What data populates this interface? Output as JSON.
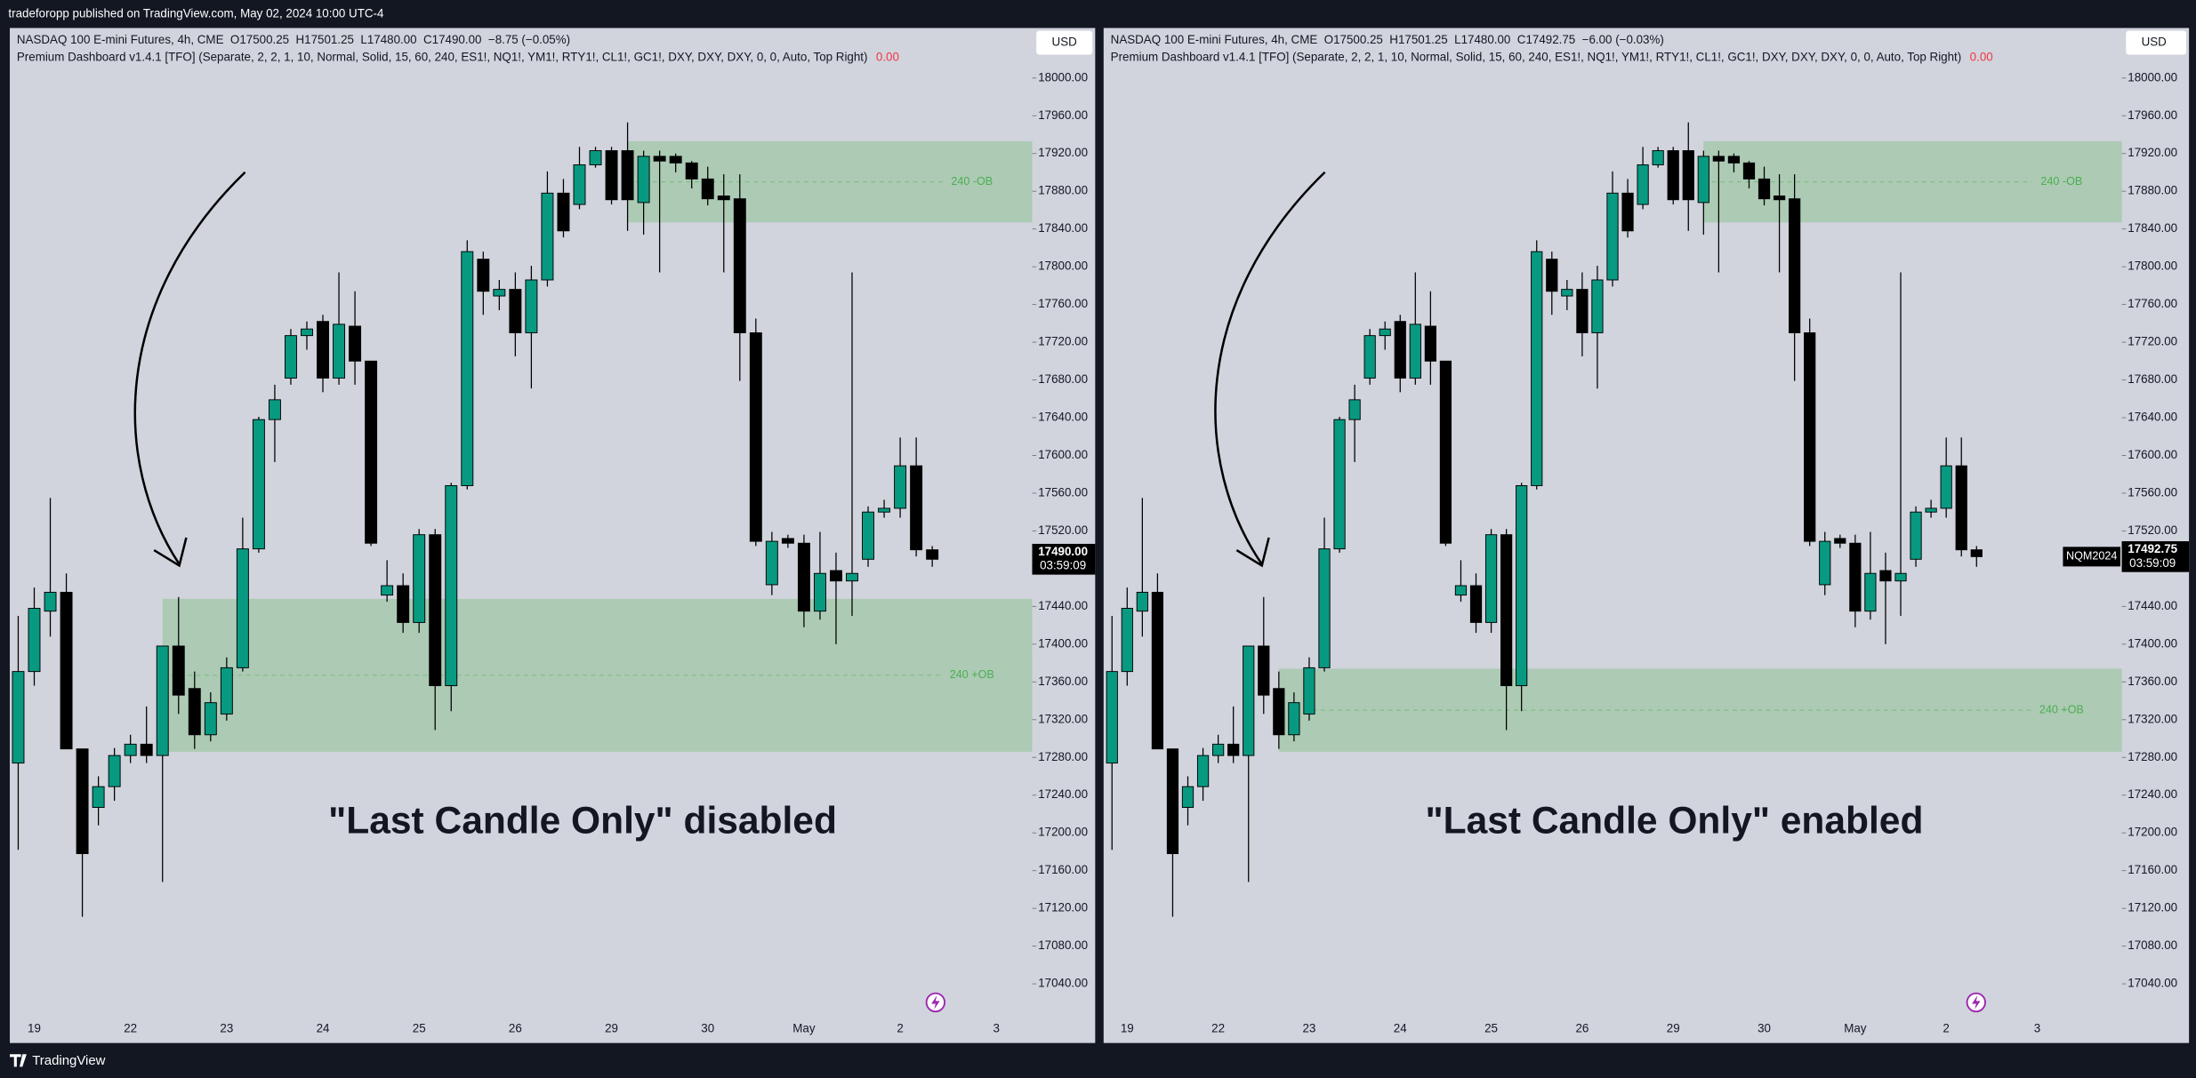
{
  "header": {
    "publisher": "tradeforopp published on TradingView.com, May 02, 2024 10:00 UTC-4"
  },
  "footer": {
    "brand": "TradingView"
  },
  "chart_data": [
    {
      "type": "candlestick",
      "title": "NASDAQ 100 E-mini Futures, 4h, CME  O17500.25  H17501.25  L17480.00  C17490.00  −8.75 (−0.05%)",
      "indicator": "Premium Dashboard v1.4.1 [TFO] (Separate, 2, 2, 1, 10, Normal, Solid, 15, 60, 240, ES1!, NQ1!, YM1!, RTY1!, CL1!, GC1!, DXY, DXY, DXY, 0, 0, Auto, Top Right)",
      "indicator_value": "0.00",
      "annotation": "\"Last Candle Only\" disabled",
      "currency": "USD",
      "last_price": "17490.00",
      "countdown": "03:59:09",
      "up_color": "#089981",
      "down_color": "#000000",
      "zone_color": "#4caf50",
      "categories": [
        null,
        "19",
        null,
        null,
        null,
        null,
        null,
        "22",
        null,
        null,
        null,
        null,
        null,
        "23",
        null,
        null,
        null,
        null,
        null,
        "24",
        null,
        null,
        null,
        null,
        null,
        "25",
        null,
        null,
        null,
        null,
        null,
        "26",
        null,
        null,
        null,
        null,
        null,
        "29",
        null,
        null,
        null,
        null,
        null,
        "30",
        null,
        null,
        null,
        null,
        null,
        "May",
        null,
        null,
        null,
        null,
        null,
        "2",
        null,
        null,
        null,
        null,
        null,
        "3"
      ],
      "open": [
        17274,
        17371,
        17435,
        17455,
        17289,
        17227,
        17249,
        17282,
        17294,
        17282,
        17398,
        17353,
        17304,
        17326,
        17375,
        17501,
        17638,
        17682,
        17727,
        17742,
        17682,
        17737,
        17700,
        17452,
        17462,
        17423,
        17516,
        17356,
        17568,
        17808,
        17769,
        17776,
        17730,
        17786,
        17878,
        17866,
        17908,
        17923,
        17923,
        17868,
        17917,
        17917,
        17910,
        17893,
        17875,
        17872,
        17730,
        17463,
        17512,
        17507,
        17435,
        17478,
        17467,
        17490,
        17540,
        17544,
        17589,
        17500,
        null,
        null,
        null,
        null
      ],
      "high": [
        17430,
        17460,
        17555,
        17475,
        17289,
        17260,
        17290,
        17304,
        17334,
        17398,
        17450,
        17371,
        17349,
        17386,
        17534,
        17641,
        17675,
        17734,
        17742,
        17749,
        17794,
        17774,
        17700,
        17489,
        17475,
        17522,
        17522,
        17571,
        17828,
        17816,
        17786,
        17794,
        17801,
        17901,
        17893,
        17927,
        17927,
        17927,
        17953,
        17923,
        17923,
        17920,
        17912,
        17906,
        17898,
        17898,
        17745,
        17519,
        17516,
        17516,
        17519,
        17497,
        17794,
        17546,
        17553,
        17619,
        17619,
        17504,
        null,
        null,
        null,
        null
      ],
      "low": [
        17182,
        17356,
        17408,
        17289,
        17111,
        17208,
        17234,
        17274,
        17274,
        17148,
        17326,
        17289,
        17297,
        17319,
        17371,
        17497,
        17593,
        17675,
        17712,
        17667,
        17675,
        17675,
        17504,
        17445,
        17412,
        17412,
        17309,
        17329,
        17564,
        17749,
        17754,
        17705,
        17671,
        17779,
        17831,
        17861,
        17905,
        17866,
        17838,
        17834,
        17794,
        17900,
        17883,
        17865,
        17794,
        17679,
        17504,
        17452,
        17502,
        17418,
        17426,
        17400,
        17430,
        17482,
        17534,
        17534,
        17493,
        17482,
        null,
        null,
        null,
        null
      ],
      "close": [
        17371,
        17438,
        17455,
        17289,
        17178,
        17249,
        17282,
        17294,
        17282,
        17398,
        17346,
        17304,
        17338,
        17375,
        17501,
        17638,
        17659,
        17727,
        17734,
        17682,
        17739,
        17700,
        17507,
        17462,
        17423,
        17516,
        17356,
        17568,
        17816,
        17774,
        17776,
        17730,
        17786,
        17878,
        17838,
        17908,
        17923,
        17871,
        17871,
        17917,
        17912,
        17910,
        17893,
        17872,
        17871,
        17730,
        17509,
        17509,
        17507,
        17435,
        17475,
        17467,
        17475,
        17540,
        17544,
        17589,
        17500,
        17490,
        null,
        null,
        null,
        null
      ],
      "order_blocks": [
        {
          "label": "240 -OB",
          "top": 17933,
          "bottom": 17847,
          "start": 38
        },
        {
          "label": "240 +OB",
          "top": 17448,
          "bottom": 17286,
          "start": 9
        }
      ],
      "ylim": [
        17007,
        18053
      ],
      "yticks": [
        {
          "value": 18000,
          "label": "18000.00"
        },
        {
          "value": 17960,
          "label": "17960.00"
        },
        {
          "value": 17920,
          "label": "17920.00"
        },
        {
          "value": 17880,
          "label": "17880.00"
        },
        {
          "value": 17840,
          "label": "17840.00"
        },
        {
          "value": 17800,
          "label": "17800.00"
        },
        {
          "value": 17760,
          "label": "17760.00"
        },
        {
          "value": 17720,
          "label": "17720.00"
        },
        {
          "value": 17680,
          "label": "17680.00"
        },
        {
          "value": 17640,
          "label": "17640.00"
        },
        {
          "value": 17600,
          "label": "17600.00"
        },
        {
          "value": 17560,
          "label": "17560.00"
        },
        {
          "value": 17520,
          "label": "17520.00"
        },
        {
          "value": 17480,
          "label": "17480.00"
        },
        {
          "value": 17440,
          "label": "17440.00"
        },
        {
          "value": 17400,
          "label": "17400.00"
        },
        {
          "value": 17360,
          "label": "17360.00"
        },
        {
          "value": 17320,
          "label": "17320.00"
        },
        {
          "value": 17280,
          "label": "17280.00"
        },
        {
          "value": 17240,
          "label": "17240.00"
        },
        {
          "value": 17200,
          "label": "17200.00"
        },
        {
          "value": 17160,
          "label": "17160.00"
        },
        {
          "value": 17120,
          "label": "17120.00"
        },
        {
          "value": 17080,
          "label": "17080.00"
        },
        {
          "value": 17040,
          "label": "17040.00"
        }
      ]
    },
    {
      "type": "candlestick",
      "title": "NASDAQ 100 E-mini Futures, 4h, CME  O17500.25  H17501.25  L17480.00  C17492.75  −6.00 (−0.03%)",
      "indicator": "Premium Dashboard v1.4.1 [TFO] (Separate, 2, 2, 1, 10, Normal, Solid, 15, 60, 240, ES1!, NQ1!, YM1!, RTY1!, CL1!, GC1!, DXY, DXY, DXY, 0, 0, Auto, Top Right)",
      "indicator_value": "0.00",
      "annotation": "\"Last Candle Only\" enabled",
      "currency": "USD",
      "symbol": "NQM2024",
      "last_price": "17492.75",
      "countdown": "03:59:09",
      "up_color": "#089981",
      "down_color": "#000000",
      "zone_color": "#4caf50",
      "categories": [
        null,
        "19",
        null,
        null,
        null,
        null,
        null,
        "22",
        null,
        null,
        null,
        null,
        null,
        "23",
        null,
        null,
        null,
        null,
        null,
        "24",
        null,
        null,
        null,
        null,
        null,
        "25",
        null,
        null,
        null,
        null,
        null,
        "26",
        null,
        null,
        null,
        null,
        null,
        "29",
        null,
        null,
        null,
        null,
        null,
        "30",
        null,
        null,
        null,
        null,
        null,
        "May",
        null,
        null,
        null,
        null,
        null,
        "2",
        null,
        null,
        null,
        null,
        null,
        "3"
      ],
      "open": [
        17274,
        17371,
        17435,
        17455,
        17289,
        17227,
        17249,
        17282,
        17294,
        17282,
        17398,
        17353,
        17304,
        17326,
        17375,
        17501,
        17638,
        17682,
        17727,
        17742,
        17682,
        17737,
        17700,
        17452,
        17462,
        17423,
        17516,
        17356,
        17568,
        17808,
        17769,
        17776,
        17730,
        17786,
        17878,
        17866,
        17908,
        17923,
        17923,
        17868,
        17917,
        17917,
        17910,
        17893,
        17875,
        17872,
        17730,
        17463,
        17512,
        17507,
        17435,
        17478,
        17467,
        17490,
        17540,
        17544,
        17589,
        17500,
        null,
        null,
        null,
        null
      ],
      "high": [
        17430,
        17460,
        17555,
        17475,
        17289,
        17260,
        17290,
        17304,
        17334,
        17398,
        17450,
        17371,
        17349,
        17386,
        17534,
        17641,
        17675,
        17734,
        17742,
        17749,
        17794,
        17774,
        17700,
        17489,
        17475,
        17522,
        17522,
        17571,
        17828,
        17816,
        17786,
        17794,
        17801,
        17901,
        17893,
        17927,
        17927,
        17927,
        17953,
        17923,
        17923,
        17920,
        17912,
        17906,
        17898,
        17898,
        17745,
        17519,
        17516,
        17516,
        17519,
        17497,
        17794,
        17546,
        17553,
        17619,
        17619,
        17504,
        null,
        null,
        null,
        null
      ],
      "low": [
        17182,
        17356,
        17408,
        17289,
        17111,
        17208,
        17234,
        17274,
        17274,
        17148,
        17326,
        17289,
        17297,
        17319,
        17371,
        17497,
        17593,
        17675,
        17712,
        17667,
        17675,
        17675,
        17504,
        17445,
        17412,
        17412,
        17309,
        17329,
        17564,
        17749,
        17754,
        17705,
        17671,
        17779,
        17831,
        17861,
        17905,
        17866,
        17838,
        17834,
        17794,
        17900,
        17883,
        17865,
        17794,
        17679,
        17504,
        17452,
        17502,
        17418,
        17426,
        17400,
        17430,
        17482,
        17534,
        17534,
        17493,
        17482,
        null,
        null,
        null,
        null
      ],
      "close": [
        17371,
        17438,
        17455,
        17289,
        17178,
        17249,
        17282,
        17294,
        17282,
        17398,
        17346,
        17304,
        17338,
        17375,
        17501,
        17638,
        17659,
        17727,
        17734,
        17682,
        17739,
        17700,
        17507,
        17462,
        17423,
        17516,
        17356,
        17568,
        17816,
        17774,
        17776,
        17730,
        17786,
        17878,
        17838,
        17908,
        17923,
        17871,
        17871,
        17917,
        17912,
        17910,
        17893,
        17872,
        17871,
        17730,
        17509,
        17509,
        17507,
        17435,
        17475,
        17467,
        17475,
        17540,
        17544,
        17589,
        17500,
        17492.75,
        null,
        null,
        null,
        null
      ],
      "order_blocks": [
        {
          "label": "240 -OB",
          "top": 17933,
          "bottom": 17847,
          "start": 39
        },
        {
          "label": "240 +OB",
          "top": 17374,
          "bottom": 17286,
          "start": 11
        }
      ],
      "ylim": [
        17007,
        18053
      ],
      "yticks": [
        {
          "value": 18000,
          "label": "18000.00"
        },
        {
          "value": 17960,
          "label": "17960.00"
        },
        {
          "value": 17920,
          "label": "17920.00"
        },
        {
          "value": 17880,
          "label": "17880.00"
        },
        {
          "value": 17840,
          "label": "17840.00"
        },
        {
          "value": 17800,
          "label": "17800.00"
        },
        {
          "value": 17760,
          "label": "17760.00"
        },
        {
          "value": 17720,
          "label": "17720.00"
        },
        {
          "value": 17680,
          "label": "17680.00"
        },
        {
          "value": 17640,
          "label": "17640.00"
        },
        {
          "value": 17600,
          "label": "17600.00"
        },
        {
          "value": 17560,
          "label": "17560.00"
        },
        {
          "value": 17520,
          "label": "17520.00"
        },
        {
          "value": 17480,
          "label": "17480.00"
        },
        {
          "value": 17440,
          "label": "17440.00"
        },
        {
          "value": 17400,
          "label": "17400.00"
        },
        {
          "value": 17360,
          "label": "17360.00"
        },
        {
          "value": 17320,
          "label": "17320.00"
        },
        {
          "value": 17280,
          "label": "17280.00"
        },
        {
          "value": 17240,
          "label": "17240.00"
        },
        {
          "value": 17200,
          "label": "17200.00"
        },
        {
          "value": 17160,
          "label": "17160.00"
        },
        {
          "value": 17120,
          "label": "17120.00"
        },
        {
          "value": 17080,
          "label": "17080.00"
        },
        {
          "value": 17040,
          "label": "17040.00"
        }
      ]
    }
  ]
}
